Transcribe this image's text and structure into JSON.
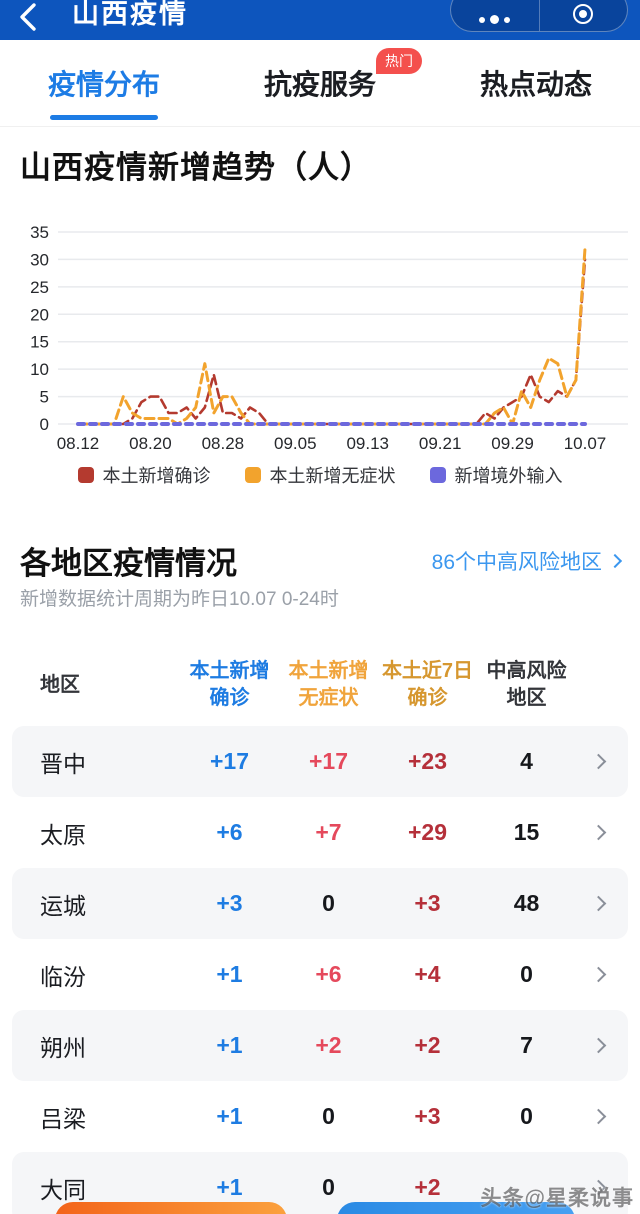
{
  "header": {
    "title": "山西疫情"
  },
  "tabs": [
    {
      "label": "疫情分布",
      "active": true
    },
    {
      "label": "抗疫服务",
      "badge": "热门"
    },
    {
      "label": "热点动态"
    }
  ],
  "chart_data": {
    "type": "line",
    "title": "山西疫情新增趋势（人）",
    "x_tick_labels": [
      "08.12",
      "08.20",
      "08.28",
      "09.05",
      "09.13",
      "09.21",
      "09.29",
      "10.07"
    ],
    "y_ticks": [
      0,
      5,
      10,
      15,
      20,
      25,
      30,
      35
    ],
    "ylim": [
      0,
      35
    ],
    "grid": true,
    "legend_position": "bottom",
    "series": [
      {
        "name": "本土新增确诊",
        "color": "#b43a2f",
        "dash": "9 5",
        "width": 2.6,
        "values": [
          0,
          0,
          0,
          0,
          0,
          0,
          1,
          4,
          5,
          5,
          2,
          2,
          3,
          1,
          3,
          9,
          2,
          2,
          1,
          3,
          2,
          0,
          0,
          0,
          0,
          0,
          0,
          0,
          0,
          0,
          0,
          0,
          0,
          0,
          0,
          0,
          0,
          0,
          0,
          0,
          0,
          0,
          0,
          0,
          0,
          2,
          1,
          3,
          4,
          5,
          9,
          5,
          4,
          6,
          5,
          8,
          30
        ]
      },
      {
        "name": "本土新增无症状",
        "color": "#f2a32d",
        "dash": "9 5",
        "width": 3,
        "values": [
          0,
          0,
          0,
          0,
          0,
          5,
          2,
          1,
          1,
          1,
          1,
          0,
          1,
          3,
          11,
          2,
          5,
          5,
          2,
          0,
          0,
          0,
          0,
          0,
          0,
          0,
          0,
          0,
          0,
          0,
          0,
          0,
          0,
          0,
          0,
          0,
          0,
          0,
          0,
          0,
          0,
          0,
          0,
          0,
          0,
          0,
          2,
          3,
          0,
          6,
          3,
          8,
          12,
          11,
          5,
          8,
          32
        ]
      },
      {
        "name": "新增境外输入",
        "color": "#6c68dd",
        "dash": "6 6",
        "width": 4,
        "values": [
          0,
          0,
          0,
          0,
          0,
          0,
          0,
          0,
          0,
          0,
          0,
          0,
          0,
          0,
          0,
          0,
          0,
          0,
          0,
          0,
          0,
          0,
          0,
          0,
          0,
          0,
          0,
          0,
          0,
          0,
          0,
          0,
          0,
          0,
          0,
          0,
          0,
          0,
          0,
          0,
          0,
          0,
          0,
          0,
          0,
          0,
          0,
          0,
          0,
          0,
          0,
          0,
          0,
          0,
          0,
          0,
          0
        ]
      }
    ]
  },
  "section": {
    "title": "各地区疫情情况",
    "link": "86个中高风险地区",
    "subtitle": "新增数据统计周期为昨日10.07 0-24时"
  },
  "table": {
    "headers": [
      {
        "line1": "地区",
        "line2": ""
      },
      {
        "line1": "本土新增",
        "line2": "确诊"
      },
      {
        "line1": "本土新增",
        "line2": "无症状"
      },
      {
        "line1": "本土近7日",
        "line2": "确诊"
      },
      {
        "line1": "中高风险",
        "line2": "地区"
      }
    ],
    "rows": [
      {
        "region": "晋中",
        "local_confirmed": "+17",
        "local_asymptomatic": "+17",
        "week_confirmed": "+23",
        "risk_areas": "4"
      },
      {
        "region": "太原",
        "local_confirmed": "+6",
        "local_asymptomatic": "+7",
        "week_confirmed": "+29",
        "risk_areas": "15"
      },
      {
        "region": "运城",
        "local_confirmed": "+3",
        "local_asymptomatic": "0",
        "week_confirmed": "+3",
        "risk_areas": "48"
      },
      {
        "region": "临汾",
        "local_confirmed": "+1",
        "local_asymptomatic": "+6",
        "week_confirmed": "+4",
        "risk_areas": "0"
      },
      {
        "region": "朔州",
        "local_confirmed": "+1",
        "local_asymptomatic": "+2",
        "week_confirmed": "+2",
        "risk_areas": "7"
      },
      {
        "region": "吕梁",
        "local_confirmed": "+1",
        "local_asymptomatic": "0",
        "week_confirmed": "+3",
        "risk_areas": "0"
      },
      {
        "region": "大同",
        "local_confirmed": "+1",
        "local_asymptomatic": "0",
        "week_confirmed": "+2",
        "risk_areas": ""
      }
    ]
  },
  "watermark": "头条@星柔说事",
  "colors": {
    "header_bg": "#0d55bd",
    "tab_active": "#1d7ce5",
    "badge_red": "#f4504d",
    "link_blue": "#3b97ef",
    "value_blue": "#1e7ce2",
    "value_red": "#e5495c",
    "value_dark_red": "#b5303a",
    "row_alt_bg": "#f5f6f8"
  }
}
